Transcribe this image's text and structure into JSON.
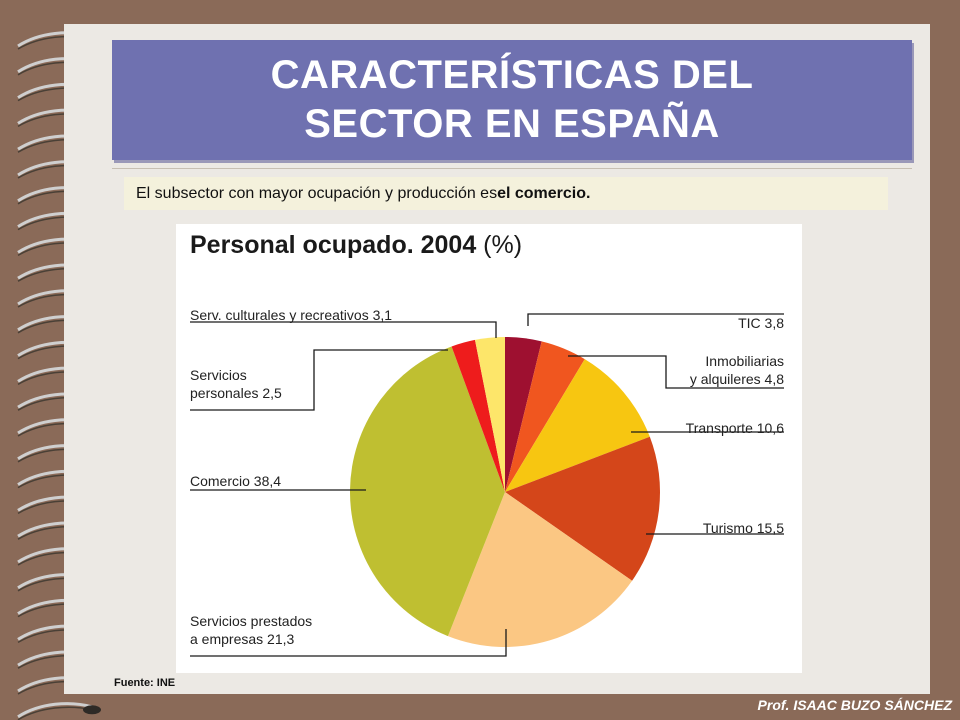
{
  "slide": {
    "title": "CARACTERÍSTICAS DEL\nSECTOR EN ESPAÑA",
    "subtitle_prefix": "El subsector con mayor ocupación y producción es ",
    "subtitle_bold": "el comercio.",
    "source": "Fuente: INE",
    "author": "Prof. ISAAC BUZO SÁNCHEZ"
  },
  "chart_data": {
    "type": "pie",
    "title": "Personal ocupado. 2004",
    "unit": "(%)",
    "slices": [
      {
        "name": "TIC",
        "label": "TIC 3,8",
        "value": 3.8,
        "color": "#9e1030"
      },
      {
        "name": "Inmobiliarias y alquileres",
        "label": "Inmobiliarias\ny alquileres 4,8",
        "value": 4.8,
        "color": "#f0561f"
      },
      {
        "name": "Transporte",
        "label": "Transporte 10,6",
        "value": 10.6,
        "color": "#f7c611"
      },
      {
        "name": "Turismo",
        "label": "Turismo 15,5",
        "value": 15.5,
        "color": "#d4461a"
      },
      {
        "name": "Servicios prestados a empresas",
        "label": "Servicios prestados\na empresas 21,3",
        "value": 21.3,
        "color": "#fbc783"
      },
      {
        "name": "Comercio",
        "label": "Comercio 38,4",
        "value": 38.4,
        "color": "#bfbf31"
      },
      {
        "name": "Servicios personales",
        "label": "Servicios\npersonales 2,5",
        "value": 2.5,
        "color": "#ee1c1c"
      },
      {
        "name": "Serv. culturales y recreativos",
        "label": "Serv. culturales y recreativos 3,1",
        "value": 3.1,
        "color": "#fde66a"
      }
    ]
  }
}
